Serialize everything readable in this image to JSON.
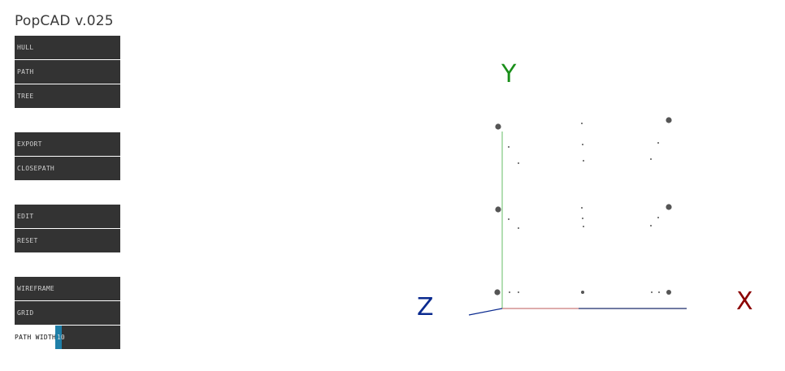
{
  "app": {
    "title": "PopCAD v.025"
  },
  "menu": {
    "groups": [
      [
        {
          "label": "HULL"
        },
        {
          "label": "PATH"
        },
        {
          "label": "TREE"
        }
      ],
      [
        {
          "label": "EXPORT"
        },
        {
          "label": "CLOSEPATH"
        }
      ],
      [
        {
          "label": "EDIT"
        },
        {
          "label": "RESET"
        }
      ],
      [
        {
          "label": "WIREFRAME"
        },
        {
          "label": "GRID"
        }
      ]
    ]
  },
  "path_width": {
    "label": "PATH WIDTH",
    "value": "10",
    "level": 0.1
  },
  "viewport": {
    "axes": {
      "x": {
        "label": "X",
        "color": "#8b0000"
      },
      "y": {
        "label": "Y",
        "color": "#1a8f1a"
      },
      "z": {
        "label": "Z",
        "color": "#0a2a8f"
      }
    }
  },
  "colors": {
    "button_bg": "#333333",
    "button_text": "#cfcfcf",
    "slider_fill": "#1f7fa8",
    "grid_point": "#555555"
  }
}
